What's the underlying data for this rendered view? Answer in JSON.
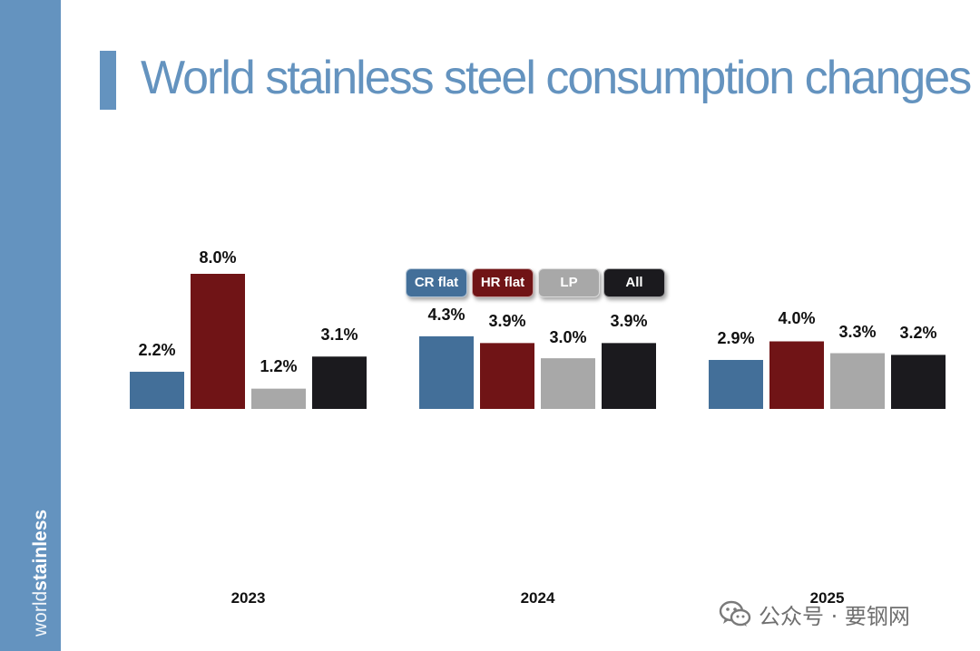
{
  "brand": {
    "light": "world",
    "bold": "stainless"
  },
  "watermark": {
    "text": "公众号 · 要钢网"
  },
  "colors": {
    "sidebar": "#6493bf",
    "title": "#6493bf",
    "CR flat": "#436f99",
    "HR flat": "#701416",
    "LP": "#a8a8a8",
    "All": "#1b1a1e"
  },
  "chart_data": {
    "type": "bar",
    "title": "World stainless steel consumption changes",
    "categories": [
      "2023",
      "2024",
      "2025"
    ],
    "series": [
      {
        "name": "CR flat",
        "values": [
          2.2,
          4.3,
          2.9
        ],
        "labels": [
          "2.2%",
          "4.3%",
          "2.9%"
        ]
      },
      {
        "name": "HR flat",
        "values": [
          8.0,
          3.9,
          4.0
        ],
        "labels": [
          "8.0%",
          "3.9%",
          "4.0%"
        ]
      },
      {
        "name": "LP",
        "values": [
          1.2,
          3.0,
          3.3
        ],
        "labels": [
          "1.2%",
          "3.0%",
          "3.3%"
        ]
      },
      {
        "name": "All",
        "values": [
          3.1,
          3.9,
          3.2
        ],
        "labels": [
          "3.1%",
          "3.9%",
          "3.2%"
        ]
      }
    ],
    "xlabel": "",
    "ylabel": "",
    "ylim": [
      0,
      8.0
    ],
    "legend": "top-center",
    "grid": false
  }
}
